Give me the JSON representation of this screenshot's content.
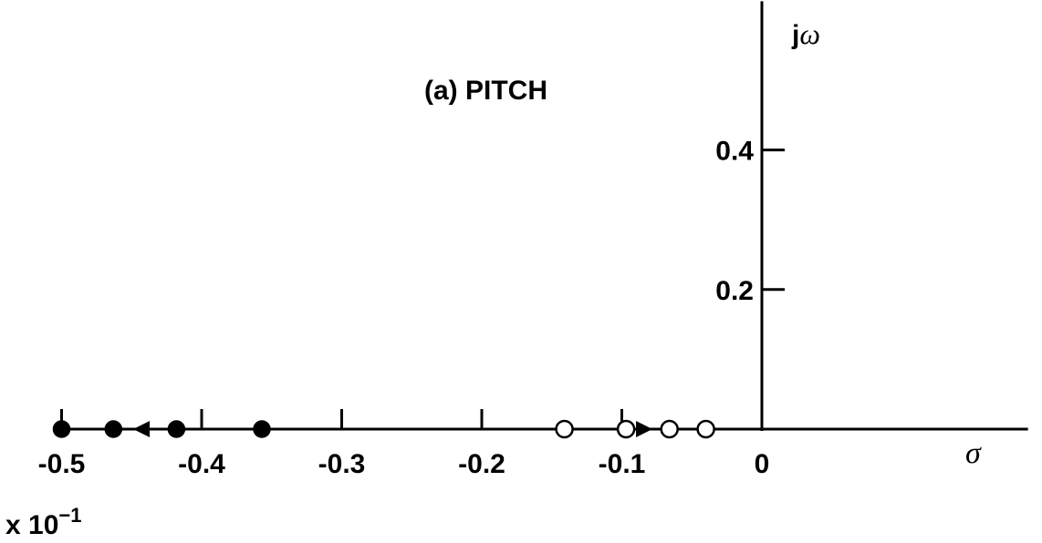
{
  "chart_data": {
    "type": "scatter",
    "title": "(a) PITCH",
    "xlabel": "σ",
    "ylabel": "jω",
    "x_scale_note": "x 10",
    "x_scale_exponent": "−1",
    "xlim": [
      -0.5,
      0.19
    ],
    "ylim": [
      0,
      0.6
    ],
    "x_ticks": [
      -0.5,
      -0.4,
      -0.3,
      -0.2,
      -0.1,
      0
    ],
    "x_tick_labels": [
      "-0.5",
      "-0.4",
      "-0.3",
      "-0.2",
      "-0.1",
      "0"
    ],
    "y_ticks": [
      0.2,
      0.4
    ],
    "y_tick_labels": [
      "0.2",
      "0.4"
    ],
    "grid": false,
    "series": [
      {
        "marker": "filled-circle",
        "x": [
          -0.5,
          -0.463,
          -0.418,
          -0.357
        ],
        "y": [
          0,
          0,
          0,
          0
        ]
      },
      {
        "marker": "open-circle",
        "x": [
          -0.141,
          -0.097,
          -0.066,
          -0.04
        ],
        "y": [
          0,
          0,
          0,
          0
        ]
      }
    ],
    "arrows": [
      {
        "x": -0.443,
        "y": 0,
        "direction": "left"
      },
      {
        "x": -0.084,
        "y": 0,
        "direction": "right"
      }
    ]
  }
}
